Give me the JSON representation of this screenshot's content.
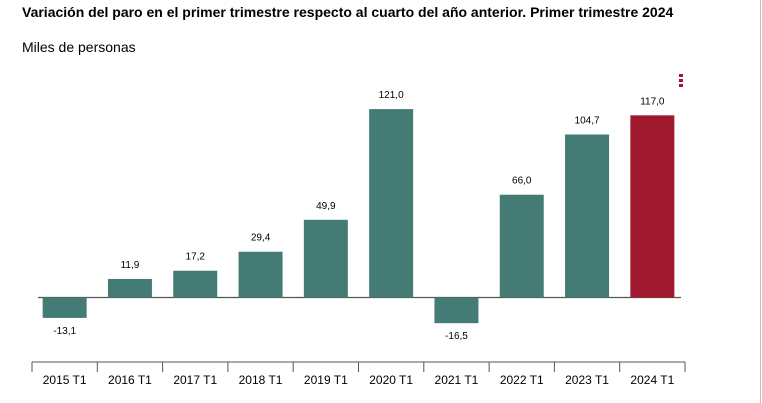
{
  "header": {
    "title": "Variación del paro en el primer trimestre respecto al cuarto del año anterior. Primer trimestre 2024",
    "subtitle": "Miles de personas"
  },
  "colors": {
    "bar": "#447b74",
    "highlight": "#a0192f",
    "menu": "#a0192f",
    "axis": "#555555"
  },
  "chart_data": {
    "type": "bar",
    "title": "Variación del paro en el primer trimestre respecto al cuarto del año anterior. Primer trimestre 2024",
    "ylabel": "Miles de personas",
    "categories": [
      "2015 T1",
      "2016 T1",
      "2017 T1",
      "2018 T1",
      "2019 T1",
      "2020 T1",
      "2021 T1",
      "2022 T1",
      "2023 T1",
      "2024 T1"
    ],
    "values": [
      -13.1,
      11.9,
      17.2,
      29.4,
      49.9,
      121.0,
      -16.5,
      66.0,
      104.7,
      117.0
    ],
    "labels": [
      "-13,1",
      "11,9",
      "17,2",
      "29,4",
      "49,9",
      "121,0",
      "-16,5",
      "66,0",
      "104,7",
      "117,0"
    ],
    "highlight_index": 9,
    "grid": false,
    "legend": "none"
  }
}
